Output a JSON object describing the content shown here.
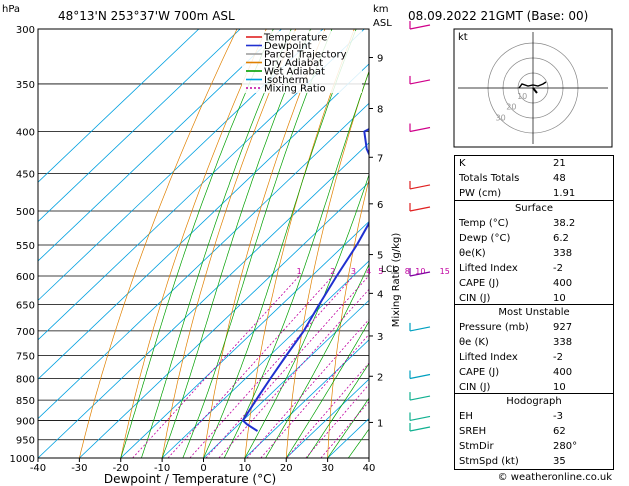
{
  "header": {
    "pressure_unit": "hPa",
    "location": "48°13'N  253°37'W  700m  ASL",
    "km_label": "km",
    "asl_label": "ASL",
    "datetime": "08.09.2022  21GMT  (Base: 00)"
  },
  "footer": {
    "credit": "© weatheronline.co.uk"
  },
  "chart_data": {
    "type": "skew-t",
    "xlabel": "Dewpoint / Temperature (°C)",
    "ylabel_right": "Mixing Ratio (g/kg)",
    "x_ticks": [
      -40,
      -30,
      -20,
      -10,
      0,
      10,
      20,
      30,
      40
    ],
    "pressure_ticks": [
      300,
      350,
      400,
      450,
      500,
      550,
      600,
      650,
      700,
      750,
      800,
      850,
      900,
      950,
      1000
    ],
    "km_ticks": [
      {
        "km": 1,
        "p": 905
      },
      {
        "km": 2,
        "p": 795
      },
      {
        "km": 3,
        "p": 710
      },
      {
        "km": 4,
        "p": 630
      },
      {
        "km": 5,
        "p": 565
      },
      {
        "km": 6,
        "p": 490
      },
      {
        "km": 7,
        "p": 430
      },
      {
        "km": 8,
        "p": 375
      },
      {
        "km": 9,
        "p": 325
      }
    ],
    "lcl_label": "LCL",
    "mixing_ratio_labels": [
      "1",
      "2",
      "3",
      "4",
      "5",
      "8",
      "10",
      "15",
      "20",
      "25"
    ],
    "mixing_ratio_values": [
      1,
      2,
      3,
      4,
      5,
      8,
      10,
      15,
      20,
      25
    ],
    "legend": [
      {
        "name": "Temperature",
        "color": "#e02020"
      },
      {
        "name": "Dewpoint",
        "color": "#2030d0"
      },
      {
        "name": "Parcel Trajectory",
        "color": "#a0a0a0"
      },
      {
        "name": "Dry Adiabat",
        "color": "#e08000"
      },
      {
        "name": "Wet Adiabat",
        "color": "#00a000"
      },
      {
        "name": "Isotherm",
        "color": "#00a0e0"
      },
      {
        "name": "Mixing Ratio",
        "color": "#c000a0"
      }
    ],
    "temperature": [
      {
        "p": 927,
        "t": 38.2
      },
      {
        "p": 900,
        "t": 35
      },
      {
        "p": 850,
        "t": 30
      },
      {
        "p": 800,
        "t": 25
      },
      {
        "p": 750,
        "t": 20
      },
      {
        "p": 700,
        "t": 15
      },
      {
        "p": 650,
        "t": 10
      },
      {
        "p": 600,
        "t": 5
      },
      {
        "p": 550,
        "t": -1
      },
      {
        "p": 500,
        "t": -7
      },
      {
        "p": 450,
        "t": -13
      },
      {
        "p": 400,
        "t": -20
      },
      {
        "p": 350,
        "t": -29
      },
      {
        "p": 300,
        "t": -38
      }
    ],
    "dewpoint": [
      {
        "p": 927,
        "t": 6.2
      },
      {
        "p": 910,
        "t": 2
      },
      {
        "p": 900,
        "t": 0
      },
      {
        "p": 850,
        "t": -2
      },
      {
        "p": 800,
        "t": -4
      },
      {
        "p": 750,
        "t": -6
      },
      {
        "p": 700,
        "t": -8
      },
      {
        "p": 650,
        "t": -11
      },
      {
        "p": 600,
        "t": -14
      },
      {
        "p": 550,
        "t": -17
      },
      {
        "p": 500,
        "t": -21
      },
      {
        "p": 450,
        "t": -30
      },
      {
        "p": 420,
        "t": -39
      },
      {
        "p": 400,
        "t": -44
      },
      {
        "p": 380,
        "t": -40
      },
      {
        "p": 350,
        "t": -52
      },
      {
        "p": 320,
        "t": -52
      },
      {
        "p": 300,
        "t": -49
      }
    ],
    "parcel": [
      {
        "p": 927,
        "t": 38.2
      },
      {
        "p": 850,
        "t": 30
      },
      {
        "p": 750,
        "t": 20
      },
      {
        "p": 650,
        "t": 10
      },
      {
        "p": 600,
        "t": 5.5
      },
      {
        "p": 550,
        "t": 1
      },
      {
        "p": 500,
        "t": -4
      },
      {
        "p": 450,
        "t": -10
      },
      {
        "p": 400,
        "t": -17
      },
      {
        "p": 350,
        "t": -25
      },
      {
        "p": 300,
        "t": -35
      }
    ],
    "wind_barb_pressures": [
      300,
      350,
      400,
      470,
      500,
      600,
      700,
      800,
      850,
      900,
      927
    ]
  },
  "hodograph": {
    "unit": "kt",
    "ring_labels": [
      "10",
      "20",
      "30"
    ]
  },
  "indices": {
    "rows": [
      {
        "label": "K",
        "value": "21"
      },
      {
        "label": "Totals Totals",
        "value": "48"
      },
      {
        "label": "PW (cm)",
        "value": "1.91"
      }
    ]
  },
  "surface": {
    "title": "Surface",
    "rows": [
      {
        "label": "Temp (°C)",
        "value": "38.2"
      },
      {
        "label": "Dewp (°C)",
        "value": "6.2"
      },
      {
        "label": "θe(K)",
        "value": "338"
      },
      {
        "label": "Lifted Index",
        "value": "-2"
      },
      {
        "label": "CAPE (J)",
        "value": "400"
      },
      {
        "label": "CIN (J)",
        "value": "10"
      }
    ]
  },
  "most_unstable": {
    "title": "Most Unstable",
    "rows": [
      {
        "label": "Pressure (mb)",
        "value": "927"
      },
      {
        "label": "θe (K)",
        "value": "338"
      },
      {
        "label": "Lifted Index",
        "value": "-2"
      },
      {
        "label": "CAPE (J)",
        "value": "400"
      },
      {
        "label": "CIN (J)",
        "value": "10"
      }
    ]
  },
  "hodograph_table": {
    "title": "Hodograph",
    "rows": [
      {
        "label": "EH",
        "value": "-3"
      },
      {
        "label": "SREH",
        "value": "62"
      },
      {
        "label": "StmDir",
        "value": "280°"
      },
      {
        "label": "StmSpd (kt)",
        "value": "35"
      }
    ]
  }
}
